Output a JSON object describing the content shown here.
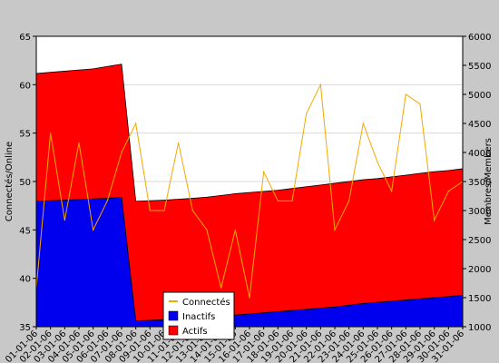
{
  "chart_data": {
    "type": "area",
    "ylabel_left": "Connectés/Online",
    "ylabel_right": "Membres/Members",
    "ylim_left": [
      35,
      65
    ],
    "ylim_right": [
      1000,
      6000
    ],
    "yticks_left": [
      "35",
      "40",
      "45",
      "50",
      "55",
      "60",
      "65"
    ],
    "yticks_right": [
      "1000",
      "1500",
      "2000",
      "2500",
      "3000",
      "3500",
      "4000",
      "4500",
      "5000",
      "5500",
      "6000"
    ],
    "grid": true,
    "legend_position": "bottom-center",
    "categories": [
      "01-01-06",
      "02-01-06",
      "03-01-06",
      "04-01-06",
      "05-01-06",
      "06-01-06",
      "07-01-06",
      "08-01-06",
      "09-01-06",
      "10-01-06",
      "11-01-06",
      "12-01-06",
      "13-01-06",
      "14-01-06",
      "15-01-06",
      "16-01-06",
      "17-01-06",
      "18-01-06",
      "19-01-06",
      "20-01-06",
      "21-01-06",
      "22-01-06",
      "23-01-06",
      "24-01-06",
      "25-01-06",
      "26-01-06",
      "27-01-06",
      "28-01-06",
      "29-01-06",
      "30-01-06",
      "31-01-06"
    ],
    "x_tick_labels": [
      "01-01-06",
      "02-01-06",
      "03-01-06",
      "04-01-06",
      "05-01-06",
      "06-01-06",
      "07-01-06",
      "08-01-06",
      "09-01-06",
      "10-01-06",
      "11-01-06",
      "12-01-06",
      "13-01-06",
      "14-01-06",
      "15-01-06",
      "16-01-06",
      "17-01-06",
      "18-01-06",
      "19-01-06",
      "20-01-06",
      "21-01-06",
      "22-01-06",
      "23-01-06",
      "24-01-06",
      "25-01-06",
      "26-01-06",
      "27-01-06",
      "28-01-06",
      "29-01-06",
      "30-01-06",
      "31-01-06"
    ],
    "series": [
      {
        "name": "Connectés",
        "axis": "left",
        "kind": "line",
        "color": "#f5a800",
        "values": [
          39,
          55,
          46,
          54,
          45,
          48,
          53,
          56,
          47,
          47,
          54,
          47,
          45,
          39,
          45,
          38,
          51,
          48,
          48,
          57,
          60,
          45,
          48,
          56,
          52,
          49,
          59,
          58,
          46,
          49,
          50
        ]
      },
      {
        "name": "Inactifs",
        "axis": "right",
        "kind": "area",
        "color": "#0000ee",
        "values": [
          3160,
          3170,
          3180,
          3190,
          3200,
          3210,
          3230,
          1100,
          1110,
          1120,
          1135,
          1150,
          1165,
          1180,
          1200,
          1220,
          1240,
          1260,
          1280,
          1300,
          1320,
          1340,
          1370,
          1400,
          1420,
          1440,
          1460,
          1480,
          1500,
          1520,
          1540
        ]
      },
      {
        "name": "Actifs",
        "axis": "right",
        "kind": "area",
        "color": "#ff0000",
        "values": [
          5360,
          5380,
          5400,
          5420,
          5440,
          5480,
          5520,
          3160,
          3170,
          3180,
          3195,
          3210,
          3230,
          3260,
          3290,
          3310,
          3330,
          3350,
          3380,
          3410,
          3440,
          3470,
          3500,
          3530,
          3550,
          3580,
          3610,
          3640,
          3670,
          3690,
          3720
        ]
      }
    ]
  }
}
